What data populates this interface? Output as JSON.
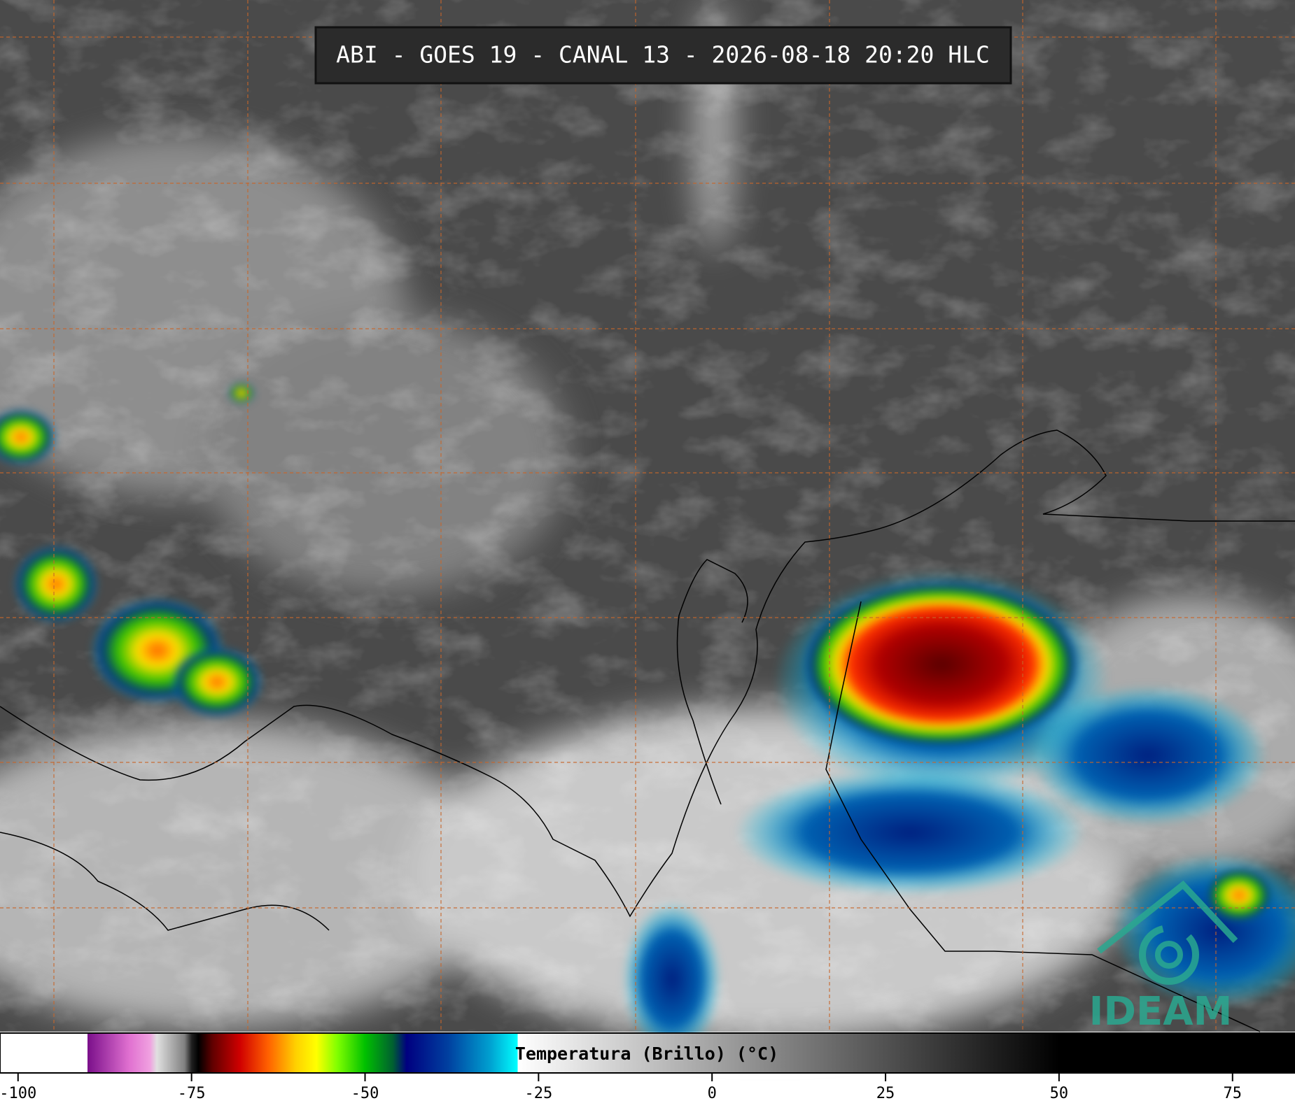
{
  "title": "ABI - GOES 19 - CANAL 13 - 2026-08-18 20:20 HLC",
  "colorbar": {
    "label": "Temperatura (Brillo) (°C)",
    "lim": [
      -102.6,
      84
    ],
    "ticks": [
      -100,
      -75,
      -50,
      -25,
      0,
      25,
      50,
      75
    ],
    "colormap": [
      [
        -102.6,
        "#ffffff"
      ],
      [
        -90,
        "#ffffff"
      ],
      [
        -90,
        "#7a0f8a"
      ],
      [
        -84,
        "#e070d0"
      ],
      [
        -81,
        "#f0a0e0"
      ],
      [
        -80,
        "#e0e0e0"
      ],
      [
        -76,
        "#808080"
      ],
      [
        -75,
        "#202020"
      ],
      [
        -74,
        "#000000"
      ],
      [
        -72,
        "#600000"
      ],
      [
        -68,
        "#d00000"
      ],
      [
        -64,
        "#ff6000"
      ],
      [
        -60,
        "#ffd000"
      ],
      [
        -57,
        "#ffff00"
      ],
      [
        -54,
        "#80ff00"
      ],
      [
        -50,
        "#00c000"
      ],
      [
        -46,
        "#006030"
      ],
      [
        -44,
        "#000080"
      ],
      [
        -38,
        "#0040a0"
      ],
      [
        -32,
        "#00a0d0"
      ],
      [
        -28,
        "#00ffff"
      ],
      [
        -28,
        "#ffffff"
      ],
      [
        50,
        "#000000"
      ],
      [
        84,
        "#000000"
      ]
    ]
  },
  "logo": "IDEAM"
}
